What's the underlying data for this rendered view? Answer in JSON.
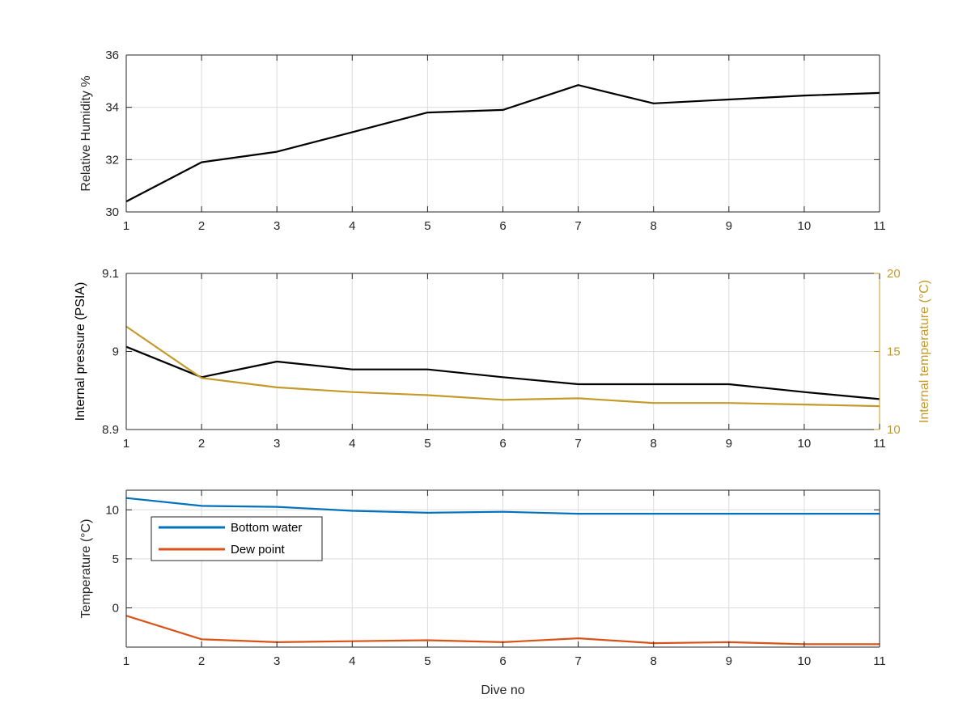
{
  "chart_data": [
    {
      "type": "line",
      "x": [
        1,
        2,
        3,
        4,
        5,
        6,
        7,
        8,
        9,
        10,
        11
      ],
      "xlim": [
        1,
        11
      ],
      "xticks": [
        "1",
        "2",
        "3",
        "4",
        "5",
        "6",
        "7",
        "8",
        "9",
        "10",
        "11"
      ],
      "xlabel": "",
      "ylabel": "Relative Humidity %",
      "ylim": [
        30,
        36
      ],
      "yticks": [
        "30",
        "32",
        "34",
        "36"
      ],
      "grid": true,
      "series": [
        {
          "color": "#000000",
          "values": [
            30.4,
            31.9,
            32.3,
            33.05,
            33.8,
            33.9,
            34.85,
            34.15,
            34.3,
            34.45,
            34.55
          ]
        }
      ]
    },
    {
      "type": "line",
      "x": [
        1,
        2,
        3,
        4,
        5,
        6,
        7,
        8,
        9,
        10,
        11
      ],
      "xlim": [
        1,
        11
      ],
      "xticks": [
        "1",
        "2",
        "3",
        "4",
        "5",
        "6",
        "7",
        "8",
        "9",
        "10",
        "11"
      ],
      "xlabel": "",
      "ylabel": "Internal pressure (PSIA)",
      "ylim": [
        8.9,
        9.1
      ],
      "yticks": [
        "8.9",
        "9",
        "9.1"
      ],
      "ylabel_right": "Internal temperature (°C)",
      "ylim_right": [
        10,
        20
      ],
      "yticks_right": [
        "10",
        "15",
        "20"
      ],
      "right_axis_color": "#c49a2b",
      "grid": true,
      "series": [
        {
          "axis": "left",
          "color": "#000000",
          "values": [
            9.006,
            8.967,
            8.987,
            8.977,
            8.977,
            8.967,
            8.958,
            8.958,
            8.958,
            8.948,
            8.939
          ]
        },
        {
          "axis": "right",
          "color": "#c49a2b",
          "values": [
            16.6,
            13.3,
            12.7,
            12.4,
            12.2,
            11.9,
            12.0,
            11.7,
            11.7,
            11.6,
            11.5
          ]
        }
      ]
    },
    {
      "type": "line",
      "x": [
        1,
        2,
        3,
        4,
        5,
        6,
        7,
        8,
        9,
        10,
        11
      ],
      "xlim": [
        1,
        11
      ],
      "xticks": [
        "1",
        "2",
        "3",
        "4",
        "5",
        "6",
        "7",
        "8",
        "9",
        "10",
        "11"
      ],
      "xlabel": "Dive no",
      "ylabel": "Temperature (°C)",
      "ylim": [
        -4,
        12
      ],
      "yticks": [
        "0",
        "5",
        "10"
      ],
      "yticks_values": [
        0,
        5,
        10
      ],
      "grid": true,
      "legend_position": "top-left",
      "series": [
        {
          "name": "Bottom water",
          "color": "#0072bd",
          "values": [
            11.2,
            10.4,
            10.3,
            9.9,
            9.7,
            9.8,
            9.6,
            9.6,
            9.6,
            9.6,
            9.6
          ]
        },
        {
          "name": "Dew point",
          "color": "#d95319",
          "values": [
            -0.8,
            -3.2,
            -3.5,
            -3.4,
            -3.3,
            -3.5,
            -3.1,
            -3.6,
            -3.5,
            -3.7,
            -3.7
          ]
        }
      ]
    }
  ]
}
